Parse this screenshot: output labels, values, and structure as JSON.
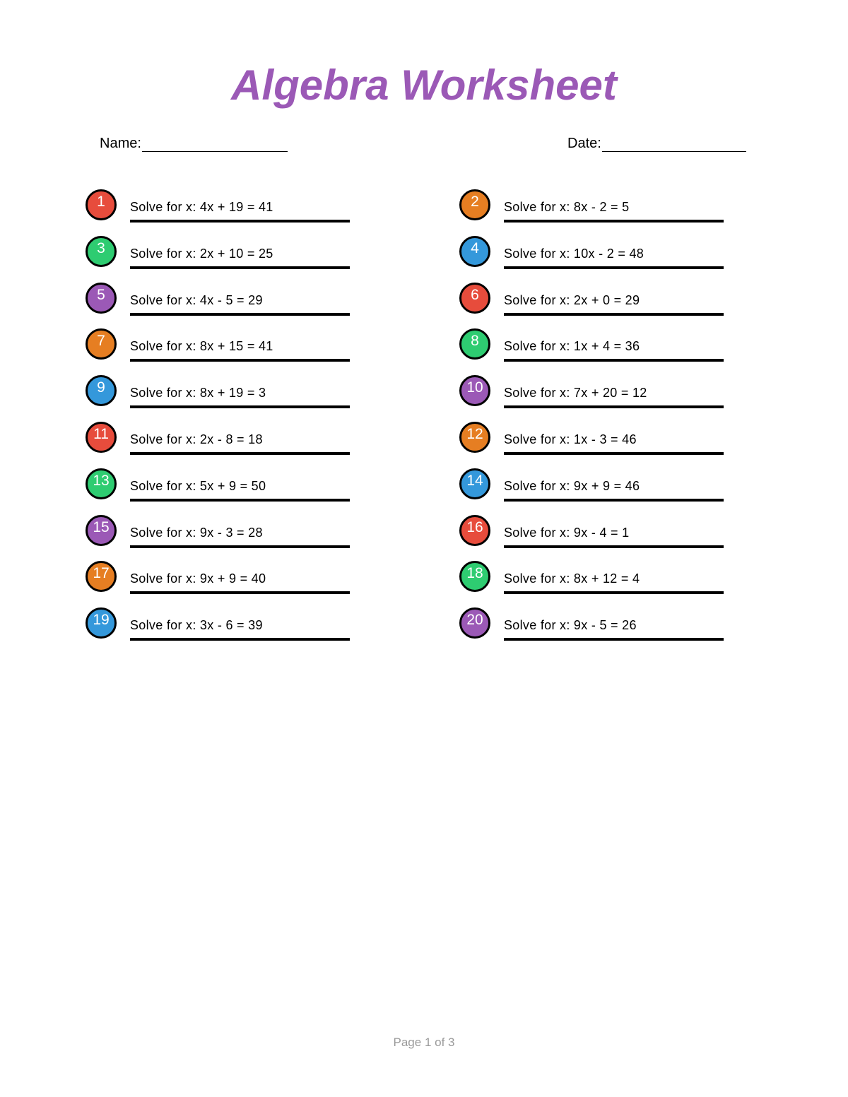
{
  "title": "Algebra Worksheet",
  "name_label": "Name:",
  "date_label": "Date:",
  "colors": {
    "title": "#9b59b6",
    "red": "#e74c3c",
    "orange": "#e67e22",
    "green": "#2ecc71",
    "blue": "#3498db",
    "purple": "#9b59b6"
  },
  "problems": [
    {
      "number": "1",
      "text": "Solve for x: 4x + 19 = 41",
      "color": "#e74c3c"
    },
    {
      "number": "2",
      "text": "Solve for x: 8x - 2 = 5",
      "color": "#e67e22"
    },
    {
      "number": "3",
      "text": "Solve for x: 2x + 10 = 25",
      "color": "#2ecc71"
    },
    {
      "number": "4",
      "text": "Solve for x: 10x - 2 = 48",
      "color": "#3498db"
    },
    {
      "number": "5",
      "text": "Solve for x: 4x - 5 = 29",
      "color": "#9b59b6"
    },
    {
      "number": "6",
      "text": "Solve for x: 2x + 0 = 29",
      "color": "#e74c3c"
    },
    {
      "number": "7",
      "text": "Solve for x: 8x + 15 = 41",
      "color": "#e67e22"
    },
    {
      "number": "8",
      "text": "Solve for x: 1x + 4 = 36",
      "color": "#2ecc71"
    },
    {
      "number": "9",
      "text": "Solve for x: 8x + 19 = 3",
      "color": "#3498db"
    },
    {
      "number": "10",
      "text": "Solve for x: 7x + 20 = 12",
      "color": "#9b59b6"
    },
    {
      "number": "11",
      "text": "Solve for x: 2x - 8 = 18",
      "color": "#e74c3c"
    },
    {
      "number": "12",
      "text": "Solve for x: 1x - 3 = 46",
      "color": "#e67e22"
    },
    {
      "number": "13",
      "text": "Solve for x: 5x + 9 = 50",
      "color": "#2ecc71"
    },
    {
      "number": "14",
      "text": "Solve for x: 9x + 9 = 46",
      "color": "#3498db"
    },
    {
      "number": "15",
      "text": "Solve for x: 9x - 3 = 28",
      "color": "#9b59b6"
    },
    {
      "number": "16",
      "text": "Solve for x: 9x - 4 = 1",
      "color": "#e74c3c"
    },
    {
      "number": "17",
      "text": "Solve for x: 9x + 9 = 40",
      "color": "#e67e22"
    },
    {
      "number": "18",
      "text": "Solve for x: 8x + 12 = 4",
      "color": "#2ecc71"
    },
    {
      "number": "19",
      "text": "Solve for x: 3x - 6 = 39",
      "color": "#3498db"
    },
    {
      "number": "20",
      "text": "Solve for x: 9x - 5 = 26",
      "color": "#9b59b6"
    }
  ],
  "footer": "Page 1 of 3"
}
